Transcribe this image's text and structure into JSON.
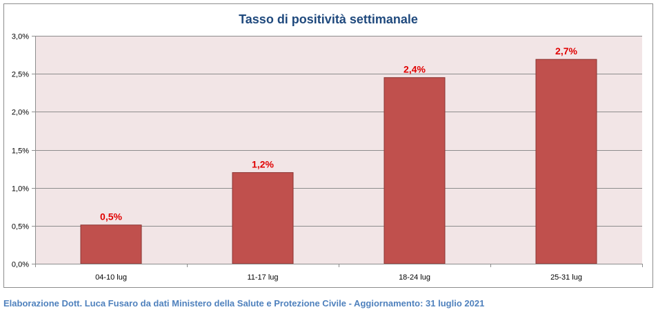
{
  "chart_data": {
    "type": "bar",
    "title": "Tasso di positività settimanale",
    "categories": [
      "04-10 lug",
      "11-17 lug",
      "18-24 lug",
      "25-31 lug"
    ],
    "values": [
      0.51,
      1.2,
      2.45,
      2.69
    ],
    "data_labels": [
      "0,5%",
      "1,2%",
      "2,4%",
      "2,7%"
    ],
    "ylim": [
      0,
      3.0
    ],
    "yticks": [
      0,
      0.5,
      1.0,
      1.5,
      2.0,
      2.5,
      3.0
    ],
    "ytick_labels": [
      "0,0%",
      "0,5%",
      "1,0%",
      "1,5%",
      "2,0%",
      "2,5%",
      "3,0%"
    ],
    "xlabel": "",
    "ylabel": "",
    "grid": true,
    "colors": {
      "bar": "#c0504d",
      "bar_edge": "#8b3532",
      "plot_bg": "#f2e5e6",
      "label": "#e00000",
      "grid": "#8c8c8c"
    }
  },
  "footer": {
    "credit": "Elaborazione Dott. Luca Fusaro da dati Ministero della Salute e Protezione Civile - Aggiornamento: 31 luglio 2021"
  }
}
